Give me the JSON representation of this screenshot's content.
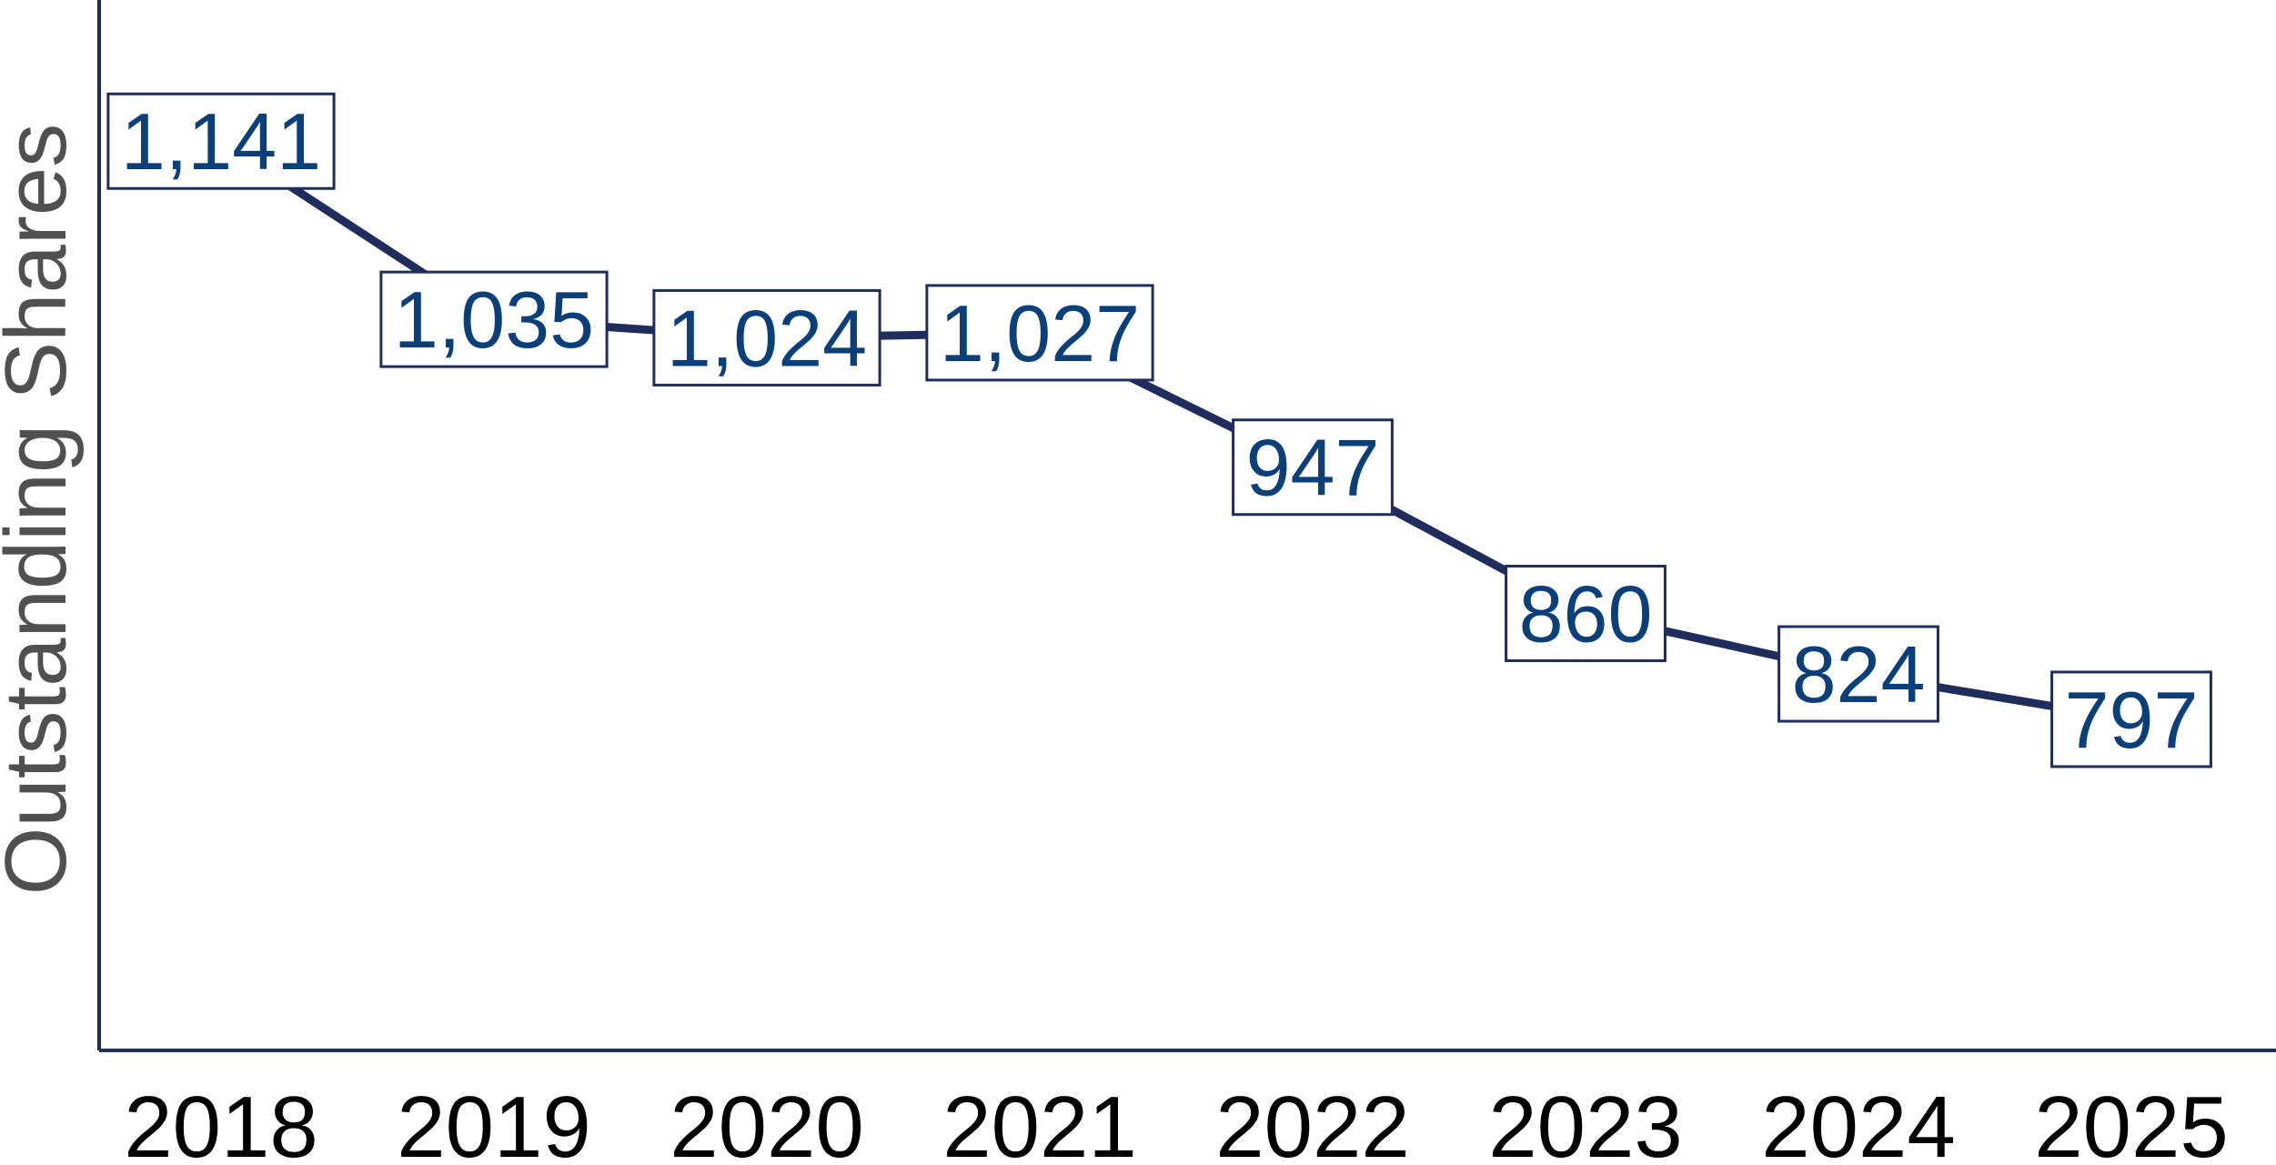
{
  "chart_data": {
    "type": "line",
    "y_label": "Outstanding Shares",
    "categories": [
      "2018",
      "2019",
      "2020",
      "2021",
      "2022",
      "2023",
      "2024",
      "2025"
    ],
    "values": [
      1141,
      1035,
      1024,
      1027,
      947,
      860,
      824,
      797
    ],
    "value_labels": [
      "1,141",
      "1,035",
      "1,024",
      "1,027",
      "947",
      "860",
      "824",
      "797"
    ],
    "color": "#1f2d5c",
    "ylim": [
      600,
      1225
    ]
  }
}
